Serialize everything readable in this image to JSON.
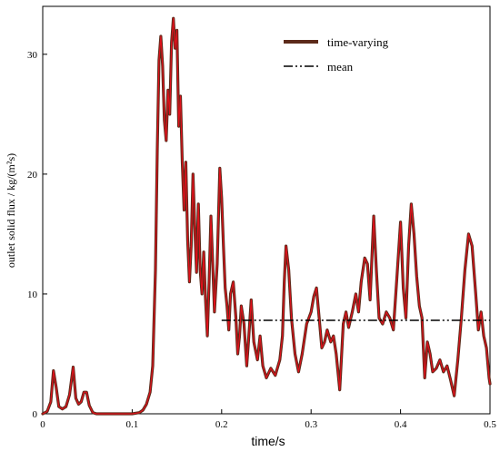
{
  "chart_data": {
    "type": "line",
    "xlabel": "time/s",
    "ylabel": "outlet solid flux / kg/(m²s)",
    "xlim": [
      0,
      0.5
    ],
    "ylim": [
      0,
      34
    ],
    "x_ticks": [
      "0",
      "0.1",
      "0.2",
      "0.3",
      "0.4",
      "0.5"
    ],
    "y_ticks": [
      "0",
      "10",
      "20",
      "30"
    ],
    "x_tick_values": [
      0,
      0.1,
      0.2,
      0.3,
      0.4,
      0.5
    ],
    "y_tick_values": [
      0,
      10,
      20,
      30
    ],
    "legend_position": "top-right",
    "legend": [
      {
        "label": "time-varying",
        "style": "solid"
      },
      {
        "label": "mean",
        "style": "dash-dot-dot"
      }
    ],
    "series": [
      {
        "name": "time-varying",
        "colors": {
          "outer": "#5c2a1a",
          "inner": "#e0101b"
        },
        "points": [
          [
            0.0,
            0
          ],
          [
            0.005,
            0.2
          ],
          [
            0.009,
            1.0
          ],
          [
            0.012,
            3.6
          ],
          [
            0.015,
            2.2
          ],
          [
            0.018,
            0.6
          ],
          [
            0.022,
            0.4
          ],
          [
            0.026,
            0.6
          ],
          [
            0.03,
            1.6
          ],
          [
            0.034,
            3.9
          ],
          [
            0.037,
            1.3
          ],
          [
            0.04,
            0.8
          ],
          [
            0.043,
            1.0
          ],
          [
            0.046,
            1.8
          ],
          [
            0.049,
            1.8
          ],
          [
            0.052,
            0.7
          ],
          [
            0.056,
            0.1
          ],
          [
            0.06,
            0
          ],
          [
            0.1,
            0
          ],
          [
            0.108,
            0.1
          ],
          [
            0.112,
            0.3
          ],
          [
            0.116,
            0.8
          ],
          [
            0.12,
            1.8
          ],
          [
            0.123,
            4.0
          ],
          [
            0.126,
            12.0
          ],
          [
            0.128,
            22.0
          ],
          [
            0.13,
            29.5
          ],
          [
            0.132,
            31.5
          ],
          [
            0.134,
            29.0
          ],
          [
            0.136,
            24.5
          ],
          [
            0.138,
            22.8
          ],
          [
            0.14,
            27.0
          ],
          [
            0.142,
            25.0
          ],
          [
            0.144,
            31.0
          ],
          [
            0.146,
            33.0
          ],
          [
            0.148,
            30.5
          ],
          [
            0.15,
            32.0
          ],
          [
            0.152,
            24.0
          ],
          [
            0.154,
            26.5
          ],
          [
            0.156,
            21.0
          ],
          [
            0.158,
            17.0
          ],
          [
            0.16,
            21.0
          ],
          [
            0.162,
            14.5
          ],
          [
            0.164,
            11.0
          ],
          [
            0.166,
            14.0
          ],
          [
            0.168,
            20.0
          ],
          [
            0.17,
            15.5
          ],
          [
            0.172,
            11.8
          ],
          [
            0.174,
            17.5
          ],
          [
            0.176,
            12.0
          ],
          [
            0.178,
            10.0
          ],
          [
            0.18,
            13.5
          ],
          [
            0.182,
            9.5
          ],
          [
            0.184,
            6.5
          ],
          [
            0.186,
            11.0
          ],
          [
            0.188,
            16.5
          ],
          [
            0.19,
            12.5
          ],
          [
            0.192,
            8.5
          ],
          [
            0.195,
            12.5
          ],
          [
            0.198,
            20.5
          ],
          [
            0.2,
            18.0
          ],
          [
            0.202,
            14.0
          ],
          [
            0.204,
            10.5
          ],
          [
            0.206,
            9.0
          ],
          [
            0.208,
            7.0
          ],
          [
            0.21,
            10.0
          ],
          [
            0.213,
            11.0
          ],
          [
            0.216,
            8.0
          ],
          [
            0.218,
            5.0
          ],
          [
            0.22,
            6.5
          ],
          [
            0.222,
            9.0
          ],
          [
            0.225,
            7.5
          ],
          [
            0.228,
            4.0
          ],
          [
            0.23,
            6.0
          ],
          [
            0.233,
            9.5
          ],
          [
            0.236,
            6.0
          ],
          [
            0.24,
            4.5
          ],
          [
            0.243,
            6.5
          ],
          [
            0.246,
            4.0
          ],
          [
            0.25,
            3.0
          ],
          [
            0.255,
            3.8
          ],
          [
            0.26,
            3.2
          ],
          [
            0.265,
            4.5
          ],
          [
            0.268,
            6.5
          ],
          [
            0.27,
            11.0
          ],
          [
            0.272,
            14.0
          ],
          [
            0.275,
            12.0
          ],
          [
            0.278,
            8.0
          ],
          [
            0.282,
            5.0
          ],
          [
            0.286,
            3.5
          ],
          [
            0.29,
            5.0
          ],
          [
            0.295,
            7.5
          ],
          [
            0.3,
            8.5
          ],
          [
            0.303,
            9.8
          ],
          [
            0.306,
            10.5
          ],
          [
            0.309,
            8.0
          ],
          [
            0.312,
            5.5
          ],
          [
            0.315,
            6.0
          ],
          [
            0.318,
            7.0
          ],
          [
            0.322,
            6.0
          ],
          [
            0.325,
            6.5
          ],
          [
            0.328,
            5.0
          ],
          [
            0.332,
            2.0
          ],
          [
            0.336,
            7.5
          ],
          [
            0.339,
            8.5
          ],
          [
            0.342,
            7.2
          ],
          [
            0.346,
            8.5
          ],
          [
            0.35,
            10.0
          ],
          [
            0.353,
            8.5
          ],
          [
            0.356,
            11.0
          ],
          [
            0.36,
            13.0
          ],
          [
            0.363,
            12.5
          ],
          [
            0.366,
            9.5
          ],
          [
            0.37,
            16.5
          ],
          [
            0.373,
            12.0
          ],
          [
            0.376,
            8.0
          ],
          [
            0.38,
            7.5
          ],
          [
            0.384,
            8.5
          ],
          [
            0.388,
            8.0
          ],
          [
            0.392,
            7.0
          ],
          [
            0.396,
            11.5
          ],
          [
            0.4,
            16.0
          ],
          [
            0.403,
            10.5
          ],
          [
            0.406,
            8.0
          ],
          [
            0.409,
            14.0
          ],
          [
            0.412,
            17.5
          ],
          [
            0.415,
            15.0
          ],
          [
            0.418,
            11.5
          ],
          [
            0.421,
            9.0
          ],
          [
            0.424,
            8.0
          ],
          [
            0.427,
            3.0
          ],
          [
            0.43,
            6.0
          ],
          [
            0.433,
            5.0
          ],
          [
            0.436,
            3.5
          ],
          [
            0.44,
            3.8
          ],
          [
            0.444,
            4.5
          ],
          [
            0.448,
            3.5
          ],
          [
            0.452,
            4.0
          ],
          [
            0.456,
            2.8
          ],
          [
            0.46,
            1.5
          ],
          [
            0.464,
            4.5
          ],
          [
            0.468,
            8.0
          ],
          [
            0.472,
            12.0
          ],
          [
            0.476,
            15.0
          ],
          [
            0.48,
            14.0
          ],
          [
            0.484,
            10.0
          ],
          [
            0.487,
            7.0
          ],
          [
            0.49,
            8.5
          ],
          [
            0.493,
            6.5
          ],
          [
            0.496,
            5.5
          ],
          [
            0.499,
            3.0
          ],
          [
            0.5,
            2.5
          ]
        ]
      },
      {
        "name": "mean",
        "color": "#000000",
        "points": [
          [
            0.2,
            7.8
          ],
          [
            0.5,
            7.8
          ]
        ]
      }
    ]
  }
}
